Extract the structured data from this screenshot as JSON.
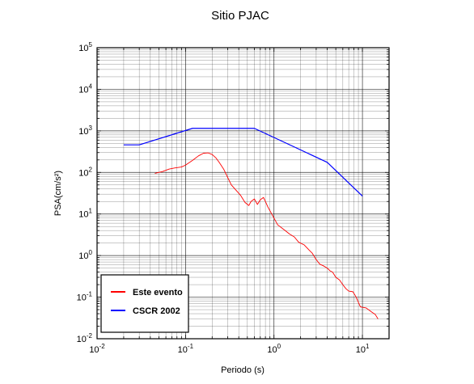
{
  "chart_data": {
    "type": "line",
    "title": "Sitio PJAC",
    "xlabel": "Periodo (s)",
    "ylabel": "PSA(cm/s²)",
    "x_scale": "log",
    "y_scale": "log",
    "xlim": [
      0.01,
      20
    ],
    "ylim": [
      0.01,
      100000
    ],
    "grid": true,
    "legend_position": "bottom-left",
    "x_ticks": [
      {
        "value": 0.01,
        "base": "10",
        "exp": "-2"
      },
      {
        "value": 0.1,
        "base": "10",
        "exp": "-1"
      },
      {
        "value": 1,
        "base": "10",
        "exp": "0"
      },
      {
        "value": 10,
        "base": "10",
        "exp": "1"
      }
    ],
    "y_ticks": [
      {
        "value": 0.01,
        "base": "10",
        "exp": "-2"
      },
      {
        "value": 0.1,
        "base": "10",
        "exp": "-1"
      },
      {
        "value": 1,
        "base": "10",
        "exp": "0"
      },
      {
        "value": 10,
        "base": "10",
        "exp": "1"
      },
      {
        "value": 100,
        "base": "10",
        "exp": "2"
      },
      {
        "value": 1000,
        "base": "10",
        "exp": "3"
      },
      {
        "value": 10000,
        "base": "10",
        "exp": "4"
      },
      {
        "value": 100000,
        "base": "10",
        "exp": "5"
      }
    ],
    "series": [
      {
        "name": "Este evento",
        "color": "#ff0000",
        "points": [
          [
            0.045,
            95
          ],
          [
            0.055,
            105
          ],
          [
            0.065,
            120
          ],
          [
            0.075,
            128
          ],
          [
            0.09,
            135
          ],
          [
            0.1,
            150
          ],
          [
            0.12,
            195
          ],
          [
            0.14,
            250
          ],
          [
            0.16,
            290
          ],
          [
            0.18,
            295
          ],
          [
            0.2,
            270
          ],
          [
            0.22,
            225
          ],
          [
            0.24,
            175
          ],
          [
            0.27,
            120
          ],
          [
            0.3,
            75
          ],
          [
            0.33,
            50
          ],
          [
            0.37,
            38
          ],
          [
            0.42,
            28
          ],
          [
            0.47,
            19
          ],
          [
            0.52,
            16
          ],
          [
            0.55,
            20
          ],
          [
            0.6,
            23
          ],
          [
            0.65,
            17
          ],
          [
            0.7,
            22
          ],
          [
            0.76,
            25
          ],
          [
            0.8,
            20
          ],
          [
            0.85,
            15
          ],
          [
            0.92,
            11
          ],
          [
            1.0,
            8
          ],
          [
            1.1,
            5.5
          ],
          [
            1.3,
            4.2
          ],
          [
            1.5,
            3.3
          ],
          [
            1.7,
            2.8
          ],
          [
            1.9,
            2.1
          ],
          [
            2.2,
            1.8
          ],
          [
            2.5,
            1.35
          ],
          [
            2.7,
            1.15
          ],
          [
            3.0,
            0.8
          ],
          [
            3.3,
            0.62
          ],
          [
            3.6,
            0.57
          ],
          [
            4.0,
            0.5
          ],
          [
            4.3,
            0.43
          ],
          [
            4.6,
            0.4
          ],
          [
            5.0,
            0.3
          ],
          [
            5.5,
            0.26
          ],
          [
            6.0,
            0.2
          ],
          [
            6.5,
            0.16
          ],
          [
            7.0,
            0.14
          ],
          [
            7.8,
            0.135
          ],
          [
            8.5,
            0.1
          ],
          [
            9.0,
            0.075
          ],
          [
            9.5,
            0.058
          ],
          [
            11,
            0.055
          ],
          [
            12.5,
            0.045
          ],
          [
            14,
            0.038
          ],
          [
            15,
            0.03
          ]
        ]
      },
      {
        "name": "CSCR 2002",
        "color": "#0000ff",
        "points": [
          [
            0.02,
            460
          ],
          [
            0.03,
            460
          ],
          [
            0.12,
            1150
          ],
          [
            0.6,
            1150
          ],
          [
            4.0,
            175
          ],
          [
            10.0,
            27
          ]
        ]
      }
    ]
  }
}
